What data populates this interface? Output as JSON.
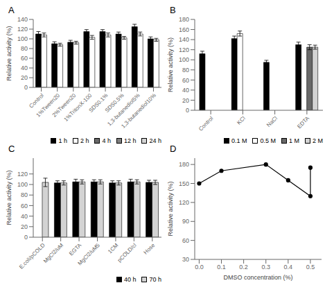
{
  "chart_data": [
    {
      "type": "bar",
      "title": "A",
      "categories": [
        "Control",
        "1%Tween20",
        "2%Tween20",
        "1%TritonX-100",
        "SDS0.1%",
        "SDS0.5%",
        "1,3-butanediol5%",
        "1,3-butanediol10%"
      ],
      "ylabel": "Relative activity (%)",
      "series": [
        {
          "name": "1 h",
          "color": "black",
          "values": [
            110,
            90,
            93,
            115,
            115,
            110,
            125,
            100
          ],
          "errors": [
            5,
            4,
            4,
            4,
            4,
            4,
            5,
            4
          ]
        },
        {
          "name": "2 h",
          "color": "white",
          "values": [
            108,
            88,
            92,
            103,
            108,
            102,
            110,
            98
          ],
          "errors": [
            4,
            3,
            3,
            4,
            4,
            3,
            4,
            3
          ]
        },
        {
          "name": "4 h",
          "color": "dimgray",
          "values": [
            null,
            null,
            null,
            null,
            null,
            null,
            null,
            null
          ]
        },
        {
          "name": "12 h",
          "color": "gray",
          "values": [
            null,
            null,
            null,
            null,
            null,
            null,
            null,
            null
          ]
        },
        {
          "name": "24 h",
          "color": "lightgray",
          "values": [
            null,
            null,
            null,
            null,
            null,
            null,
            null,
            null
          ]
        }
      ],
      "ylim": [
        0,
        140
      ],
      "yticks": [
        0,
        20,
        40,
        60,
        80,
        100,
        120,
        140
      ],
      "legend": "lower right"
    },
    {
      "type": "bar",
      "title": "B",
      "categories": [
        "Control",
        "KCl",
        "NaCl",
        "EDTA"
      ],
      "ylabel": "Relative activity (%)",
      "series": [
        {
          "name": "0.1 M",
          "color": "black",
          "values": [
            112,
            142,
            95,
            130
          ],
          "errors": [
            5,
            5,
            4,
            5
          ]
        },
        {
          "name": "0.5 M",
          "color": "white",
          "values": [
            0,
            152,
            0,
            0
          ],
          "errors": [
            0,
            5,
            0,
            0
          ]
        },
        {
          "name": "1 M",
          "color": "dimgray",
          "values": [
            0,
            0,
            0,
            125
          ],
          "errors": [
            0,
            0,
            0,
            5
          ]
        },
        {
          "name": "2 M",
          "color": "lightgray",
          "values": [
            0,
            0,
            0,
            125
          ],
          "errors": [
            0,
            0,
            0,
            4
          ]
        }
      ],
      "ylim": [
        0,
        180
      ],
      "yticks": [
        0,
        20,
        40,
        60,
        80,
        100,
        120,
        140,
        160,
        180
      ],
      "legend": "lower right"
    },
    {
      "type": "bar",
      "title": "C",
      "categories": [
        "E.coli/pCOLD",
        "MgCl2/uM",
        "EGTA",
        "MgCl2/uM5",
        "1CM",
        "pCOLD/cl",
        "Hose"
      ],
      "ylabel": "Relative activity (%)",
      "series": [
        {
          "name": "40 h",
          "color": "black",
          "values": [
            0,
            103,
            105,
            105,
            103,
            105,
            104
          ],
          "errors": [
            0,
            4,
            5,
            4,
            4,
            5,
            4
          ]
        },
        {
          "name": "70 h",
          "color": "lightgray",
          "values": [
            104,
            103,
            105,
            105,
            103,
            105,
            104
          ],
          "errors": [
            8,
            4,
            4,
            4,
            4,
            4,
            4
          ]
        }
      ],
      "ylim": [
        0,
        150
      ],
      "yticks": [
        0,
        20,
        40,
        60,
        80,
        100,
        120
      ],
      "legend": "lower right"
    },
    {
      "type": "line",
      "title": "D",
      "x": [
        0.0,
        0.1,
        0.3,
        0.4,
        0.5,
        0.5
      ],
      "values": [
        150,
        170,
        180,
        155,
        130,
        175
      ],
      "color": "black",
      "marker": "circle",
      "line_style": "solid",
      "xlabel": "DMSO concentration (%)",
      "ylabel": "Relative activity (%)",
      "xlim": [
        -0.02,
        0.55
      ],
      "xticks": [
        {
          "value": 0.0,
          "label": "0.0"
        },
        0.1,
        0.2,
        0.3,
        0.4,
        0.5
      ],
      "ylim": [
        30,
        190
      ],
      "yticks": [
        30,
        60,
        90,
        120,
        150,
        180
      ]
    }
  ]
}
